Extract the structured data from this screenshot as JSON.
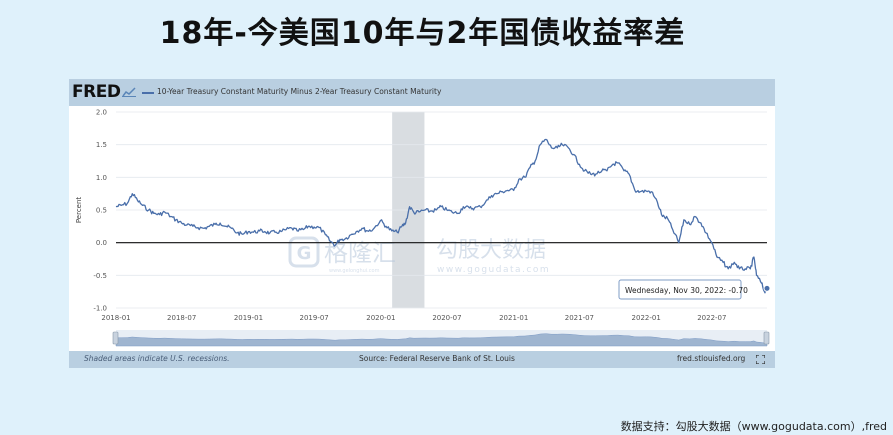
{
  "title": "18年-今美国10年与2年国债收益率差",
  "fred": {
    "logo": "FRED",
    "legend": "10-Year Treasury Constant Maturity Minus 2-Year Treasury Constant Maturity",
    "footer_left": "Shaded areas indicate U.S. recessions.",
    "footer_center": "Source: Federal Reserve Bank of St. Louis",
    "footer_right": "fred.stlouisfed.org",
    "tooltip": "Wednesday, Nov 30, 2022: -0.70",
    "watermark_cn": "格隆汇",
    "watermark_url_small": "www.gelonghui.com",
    "watermark2_cn": "勾股大数据",
    "watermark2_url": "www.gogudata.com"
  },
  "credit": "数据支持：勾股大数据（www.gogudata.com）,fred",
  "colors": {
    "line": "#4a6faa",
    "recession": "#d9dde1",
    "zero_line": "#111111"
  },
  "chart_data": {
    "type": "line",
    "ylabel": "Percent",
    "ylim": [
      -1.0,
      2.0
    ],
    "yticks": [
      "2.0",
      "1.5",
      "1.0",
      "0.5",
      "0.0",
      "-0.5",
      "-1.0"
    ],
    "xlim": [
      "2018-01-01",
      "2022-11-30"
    ],
    "xticks": [
      "2018-01",
      "2018-07",
      "2019-01",
      "2019-07",
      "2020-01",
      "2020-07",
      "2021-01",
      "2021-07",
      "2022-01",
      "2022-07"
    ],
    "recession": [
      "2020-02-01",
      "2020-04-30"
    ],
    "series": [
      {
        "name": "10-Year Treasury Constant Maturity Minus 2-Year Treasury Constant Maturity",
        "points": [
          [
            "2018-01-01",
            0.55
          ],
          [
            "2018-01-15",
            0.57
          ],
          [
            "2018-02-01",
            0.6
          ],
          [
            "2018-02-15",
            0.75
          ],
          [
            "2018-03-01",
            0.65
          ],
          [
            "2018-03-15",
            0.57
          ],
          [
            "2018-04-01",
            0.5
          ],
          [
            "2018-04-15",
            0.45
          ],
          [
            "2018-05-01",
            0.43
          ],
          [
            "2018-05-15",
            0.47
          ],
          [
            "2018-06-01",
            0.4
          ],
          [
            "2018-06-15",
            0.35
          ],
          [
            "2018-07-01",
            0.3
          ],
          [
            "2018-07-15",
            0.27
          ],
          [
            "2018-08-01",
            0.25
          ],
          [
            "2018-08-15",
            0.23
          ],
          [
            "2018-09-01",
            0.22
          ],
          [
            "2018-09-15",
            0.25
          ],
          [
            "2018-10-01",
            0.28
          ],
          [
            "2018-10-15",
            0.3
          ],
          [
            "2018-11-01",
            0.25
          ],
          [
            "2018-11-15",
            0.22
          ],
          [
            "2018-12-01",
            0.15
          ],
          [
            "2018-12-15",
            0.13
          ],
          [
            "2019-01-01",
            0.17
          ],
          [
            "2019-01-15",
            0.16
          ],
          [
            "2019-02-01",
            0.18
          ],
          [
            "2019-02-15",
            0.17
          ],
          [
            "2019-03-01",
            0.15
          ],
          [
            "2019-03-15",
            0.16
          ],
          [
            "2019-04-01",
            0.17
          ],
          [
            "2019-04-15",
            0.2
          ],
          [
            "2019-05-01",
            0.22
          ],
          [
            "2019-05-15",
            0.18
          ],
          [
            "2019-06-01",
            0.2
          ],
          [
            "2019-06-15",
            0.25
          ],
          [
            "2019-07-01",
            0.24
          ],
          [
            "2019-07-15",
            0.23
          ],
          [
            "2019-08-01",
            0.12
          ],
          [
            "2019-08-15",
            0.02
          ],
          [
            "2019-08-28",
            -0.04
          ],
          [
            "2019-09-10",
            0.05
          ],
          [
            "2019-09-25",
            0.06
          ],
          [
            "2019-10-10",
            0.12
          ],
          [
            "2019-10-25",
            0.17
          ],
          [
            "2019-11-10",
            0.22
          ],
          [
            "2019-11-25",
            0.18
          ],
          [
            "2019-12-10",
            0.2
          ],
          [
            "2019-12-31",
            0.34
          ],
          [
            "2020-01-15",
            0.25
          ],
          [
            "2020-01-31",
            0.18
          ],
          [
            "2020-02-15",
            0.16
          ],
          [
            "2020-02-28",
            0.25
          ],
          [
            "2020-03-09",
            0.3
          ],
          [
            "2020-03-20",
            0.55
          ],
          [
            "2020-04-01",
            0.46
          ],
          [
            "2020-04-15",
            0.47
          ],
          [
            "2020-05-01",
            0.5
          ],
          [
            "2020-05-15",
            0.48
          ],
          [
            "2020-06-01",
            0.5
          ],
          [
            "2020-06-15",
            0.55
          ],
          [
            "2020-07-01",
            0.5
          ],
          [
            "2020-07-15",
            0.47
          ],
          [
            "2020-08-01",
            0.45
          ],
          [
            "2020-08-15",
            0.55
          ],
          [
            "2020-09-01",
            0.53
          ],
          [
            "2020-09-15",
            0.53
          ],
          [
            "2020-10-01",
            0.55
          ],
          [
            "2020-10-15",
            0.62
          ],
          [
            "2020-11-01",
            0.72
          ],
          [
            "2020-11-15",
            0.75
          ],
          [
            "2020-12-01",
            0.78
          ],
          [
            "2020-12-15",
            0.8
          ],
          [
            "2021-01-01",
            0.8
          ],
          [
            "2021-01-15",
            0.97
          ],
          [
            "2021-02-01",
            1.0
          ],
          [
            "2021-02-15",
            1.15
          ],
          [
            "2021-03-01",
            1.25
          ],
          [
            "2021-03-15",
            1.5
          ],
          [
            "2021-03-31",
            1.58
          ],
          [
            "2021-04-15",
            1.45
          ],
          [
            "2021-05-01",
            1.45
          ],
          [
            "2021-05-15",
            1.5
          ],
          [
            "2021-06-01",
            1.45
          ],
          [
            "2021-06-15",
            1.35
          ],
          [
            "2021-07-01",
            1.2
          ],
          [
            "2021-07-15",
            1.1
          ],
          [
            "2021-08-01",
            1.05
          ],
          [
            "2021-08-15",
            1.05
          ],
          [
            "2021-09-01",
            1.1
          ],
          [
            "2021-09-15",
            1.1
          ],
          [
            "2021-10-01",
            1.2
          ],
          [
            "2021-10-15",
            1.22
          ],
          [
            "2021-11-01",
            1.1
          ],
          [
            "2021-11-15",
            1.05
          ],
          [
            "2021-12-01",
            0.8
          ],
          [
            "2021-12-15",
            0.78
          ],
          [
            "2022-01-01",
            0.79
          ],
          [
            "2022-01-15",
            0.78
          ],
          [
            "2022-02-01",
            0.62
          ],
          [
            "2022-02-15",
            0.4
          ],
          [
            "2022-03-01",
            0.37
          ],
          [
            "2022-03-15",
            0.2
          ],
          [
            "2022-04-01",
            0.0
          ],
          [
            "2022-04-15",
            0.35
          ],
          [
            "2022-05-01",
            0.28
          ],
          [
            "2022-05-15",
            0.4
          ],
          [
            "2022-06-01",
            0.3
          ],
          [
            "2022-06-15",
            0.15
          ],
          [
            "2022-07-01",
            0.0
          ],
          [
            "2022-07-15",
            -0.22
          ],
          [
            "2022-08-01",
            -0.3
          ],
          [
            "2022-08-15",
            -0.4
          ],
          [
            "2022-09-01",
            -0.3
          ],
          [
            "2022-09-15",
            -0.4
          ],
          [
            "2022-10-01",
            -0.4
          ],
          [
            "2022-10-15",
            -0.4
          ],
          [
            "2022-10-25",
            -0.22
          ],
          [
            "2022-11-01",
            -0.5
          ],
          [
            "2022-11-15",
            -0.62
          ],
          [
            "2022-11-23",
            -0.75
          ],
          [
            "2022-11-30",
            -0.7
          ]
        ]
      }
    ]
  }
}
